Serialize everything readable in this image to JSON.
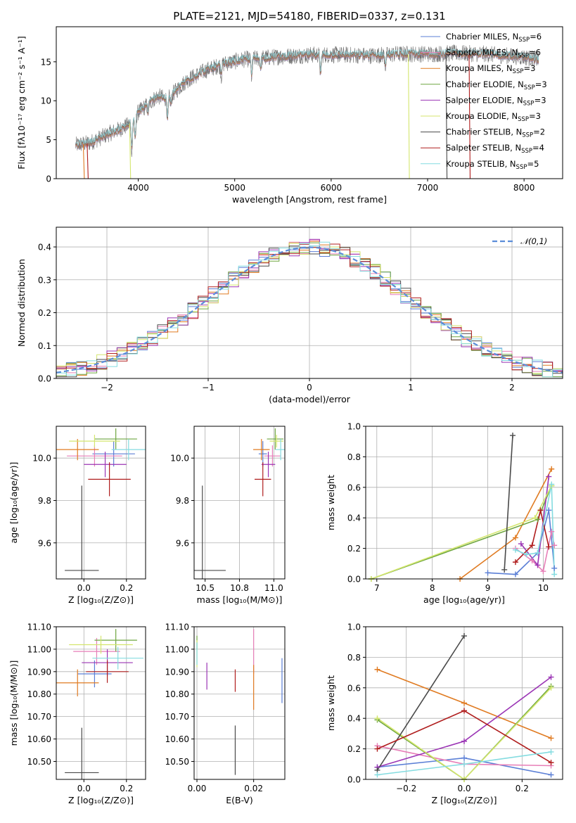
{
  "figure": {
    "title": "PLATE=2121, MJD=54180, FIBERID=0337, z=0.131"
  },
  "colors": {
    "Chabrier MILES": "#5b7fd6",
    "Salpeter MILES": "#e77fb8",
    "Kroupa MILES": "#e07b22",
    "Chabrier ELODIE": "#6ea640",
    "Salpeter ELODIE": "#9b35b5",
    "Kroupa ELODIE": "#d4e66e",
    "Chabrier STELIB": "#4a4a4a",
    "Salpeter STELIB": "#b01e1e",
    "Kroupa STELIB": "#84dce0"
  },
  "chart_data": [
    {
      "id": "spectrum",
      "type": "line",
      "title": "PLATE=2121, MJD=54180, FIBERID=0337, z=0.131",
      "xlabel": "wavelength [Angstrom, rest frame]",
      "ylabel": "Flux [fλ10⁻¹⁷ erg cm⁻² s⁻¹ A⁻¹]",
      "xlim": [
        3150,
        8400
      ],
      "ylim": [
        0,
        19.5
      ],
      "xticks": [
        4000,
        5000,
        6000,
        7000,
        8000
      ],
      "yticks": [
        0,
        5,
        10,
        15
      ],
      "grid": false,
      "legend_position": "top-right",
      "legend": [
        "Chabrier MILES, N_SSP=6",
        "Salpeter MILES, N_SSP=6",
        "Kroupa MILES, N_SSP=3",
        "Chabrier ELODIE, N_SSP=3",
        "Salpeter ELODIE, N_SSP=3",
        "Kroupa ELODIE, N_SSP=3",
        "Chabrier STELIB, N_SSP=2",
        "Salpeter STELIB, N_SSP=4",
        "Kroupa STELIB, N_SSP=5"
      ],
      "continuum": {
        "wavelength": [
          3350,
          3500,
          3700,
          3800,
          3900,
          4000,
          4200,
          4300,
          4500,
          4700,
          4900,
          5100,
          5300,
          5500,
          5800,
          6100,
          6400,
          6700,
          7000,
          7300,
          7600,
          7800,
          8000,
          8150
        ],
        "flux": [
          4.3,
          4.6,
          5.8,
          6.3,
          6.9,
          8.5,
          10.6,
          10.2,
          12.6,
          13.9,
          14.8,
          15.3,
          15.5,
          15.7,
          15.9,
          15.9,
          15.8,
          16.0,
          16.0,
          16.1,
          16.0,
          15.8,
          15.6,
          15.3
        ]
      },
      "absorption_lines": [
        {
          "wavelength": 3934,
          "depth": 4.0
        },
        {
          "wavelength": 3969,
          "depth": 3.0
        },
        {
          "wavelength": 4102,
          "depth": 1.0
        },
        {
          "wavelength": 4304,
          "depth": 2.5
        },
        {
          "wavelength": 4340,
          "depth": 1.2
        },
        {
          "wavelength": 4861,
          "depth": 1.5
        },
        {
          "wavelength": 5175,
          "depth": 2.3
        },
        {
          "wavelength": 5270,
          "depth": 1.0
        },
        {
          "wavelength": 5890,
          "depth": 2.5
        },
        {
          "wavelength": 6563,
          "depth": 1.5
        },
        {
          "wavelength": 8498,
          "depth": 1.0
        }
      ],
      "model_dropouts": [
        {
          "series": "Kroupa MILES",
          "wavelength": 3430
        },
        {
          "series": "Salpeter STELIB",
          "wavelength": 3470
        },
        {
          "series": "Kroupa ELODIE",
          "wavelength": 3910
        },
        {
          "series": "Kroupa ELODIE",
          "wavelength": 6800
        },
        {
          "series": "Chabrier STELIB",
          "wavelength": 7190
        },
        {
          "series": "Salpeter STELIB",
          "wavelength": 7430
        }
      ]
    },
    {
      "id": "residual_histogram",
      "type": "bar",
      "xlabel": "(data-model)/error",
      "ylabel": "Normed distribution",
      "xlim": [
        -2.5,
        2.5
      ],
      "ylim": [
        0,
        0.46
      ],
      "xticks": [
        -2,
        -1,
        0,
        1,
        2
      ],
      "yticks": [
        0.0,
        0.1,
        0.2,
        0.3,
        0.4
      ],
      "grid": true,
      "legend_position": "top-right",
      "legend": [
        "𝒩(0,1)"
      ],
      "bin_width": 0.1,
      "gaussian": {
        "mean": 0,
        "sigma": 1,
        "color": "#5b8dd9"
      }
    },
    {
      "id": "age_vs_Z",
      "type": "scatter",
      "xlabel": "Z [log₁₀(Z/Z⊙)]",
      "ylabel": "age  [log₁₀(age/yr)]",
      "xlim": [
        -0.13,
        0.29
      ],
      "ylim": [
        9.43,
        10.15
      ],
      "xticks": [
        0.0,
        0.2
      ],
      "yticks": [
        9.6,
        9.8,
        10.0
      ],
      "grid": true,
      "points": [
        {
          "series": "Chabrier MILES",
          "x": 0.14,
          "xerr": 0.1,
          "y": 10.02,
          "yerr": 0.06
        },
        {
          "series": "Salpeter MILES",
          "x": 0.05,
          "xerr": 0.13,
          "y": 10.01,
          "yerr": 0.05
        },
        {
          "series": "Kroupa MILES",
          "x": -0.03,
          "xerr": 0.1,
          "y": 10.04,
          "yerr": 0.05
        },
        {
          "series": "Chabrier ELODIE",
          "x": 0.15,
          "xerr": 0.1,
          "y": 10.09,
          "yerr": 0.05
        },
        {
          "series": "Salpeter ELODIE",
          "x": 0.1,
          "xerr": 0.1,
          "y": 9.97,
          "yerr": 0.06
        },
        {
          "series": "Kroupa ELODIE",
          "x": 0.05,
          "xerr": 0.12,
          "y": 10.08,
          "yerr": 0.03
        },
        {
          "series": "Chabrier STELIB",
          "x": -0.01,
          "xerr": 0.08,
          "y": 9.47,
          "yerr": 0.4
        },
        {
          "series": "Salpeter STELIB",
          "x": 0.12,
          "xerr": 0.1,
          "y": 9.9,
          "yerr": 0.08
        },
        {
          "series": "Kroupa STELIB",
          "x": 0.21,
          "xerr": 0.08,
          "y": 10.04,
          "yerr": 0.05
        }
      ]
    },
    {
      "id": "age_vs_mass",
      "type": "scatter",
      "xlabel": "mass [log₁₀(M/M⊙)]",
      "xlim": [
        10.42,
        11.08
      ],
      "ylim": [
        9.43,
        10.15
      ],
      "xticks": [
        10.5,
        10.75,
        11.0
      ],
      "yticks": [
        9.6,
        9.8,
        10.0
      ],
      "grid": true,
      "points": [
        {
          "series": "Chabrier MILES",
          "x": 10.92,
          "xerr": 0.03,
          "y": 10.02,
          "yerr": 0.06
        },
        {
          "series": "Salpeter MILES",
          "x": 10.99,
          "xerr": 0.06,
          "y": 10.01,
          "yerr": 0.05
        },
        {
          "series": "Kroupa MILES",
          "x": 10.91,
          "xerr": 0.06,
          "y": 10.04,
          "yerr": 0.05
        },
        {
          "series": "Chabrier ELODIE",
          "x": 11.01,
          "xerr": 0.06,
          "y": 10.09,
          "yerr": 0.05
        },
        {
          "series": "Salpeter ELODIE",
          "x": 10.96,
          "xerr": 0.05,
          "y": 9.97,
          "yerr": 0.06
        },
        {
          "series": "Kroupa ELODIE",
          "x": 11.02,
          "xerr": 0.05,
          "y": 10.08,
          "yerr": 0.03
        },
        {
          "series": "Chabrier STELIB",
          "x": 10.48,
          "xerr": 0.17,
          "y": 9.47,
          "yerr": 0.4
        },
        {
          "series": "Salpeter STELIB",
          "x": 10.92,
          "xerr": 0.06,
          "y": 9.9,
          "yerr": 0.08
        },
        {
          "series": "Kroupa STELIB",
          "x": 11.05,
          "xerr": 0.04,
          "y": 10.04,
          "yerr": 0.05
        }
      ]
    },
    {
      "id": "mass_weight_vs_age",
      "type": "line",
      "xlabel": "age  [log₁₀(age/yr)]",
      "ylabel": "mass weight",
      "xlim": [
        6.8,
        10.35
      ],
      "ylim": [
        0,
        1.0
      ],
      "xticks": [
        7,
        8,
        9,
        10
      ],
      "yticks": [
        0.0,
        0.2,
        0.4,
        0.6,
        0.8,
        1.0
      ],
      "grid": true,
      "series": [
        {
          "name": "Chabrier MILES",
          "x": [
            9.0,
            9.5,
            9.9,
            10.1,
            10.2
          ],
          "y": [
            0.04,
            0.03,
            0.17,
            0.45,
            0.07
          ]
        },
        {
          "name": "Salpeter MILES",
          "x": [
            9.5,
            9.8,
            10.0,
            10.15,
            10.2
          ],
          "y": [
            0.2,
            0.12,
            0.05,
            0.31,
            0.22
          ]
        },
        {
          "name": "Kroupa MILES",
          "x": [
            8.5,
            9.5,
            10.15
          ],
          "y": [
            0.0,
            0.27,
            0.72
          ]
        },
        {
          "name": "Chabrier ELODIE",
          "x": [
            6.9,
            9.9,
            10.15
          ],
          "y": [
            0.0,
            0.39,
            0.61
          ]
        },
        {
          "name": "Salpeter ELODIE",
          "x": [
            9.6,
            9.9,
            10.1
          ],
          "y": [
            0.23,
            0.09,
            0.67
          ]
        },
        {
          "name": "Kroupa ELODIE",
          "x": [
            6.9,
            9.85,
            10.15
          ],
          "y": [
            0.0,
            0.4,
            0.61
          ]
        },
        {
          "name": "Chabrier STELIB",
          "x": [
            9.3,
            9.45
          ],
          "y": [
            0.06,
            0.94
          ]
        },
        {
          "name": "Salpeter STELIB",
          "x": [
            9.5,
            9.8,
            9.95,
            10.1
          ],
          "y": [
            0.11,
            0.22,
            0.45,
            0.21
          ]
        },
        {
          "name": "Kroupa STELIB",
          "x": [
            9.5,
            9.7,
            9.9,
            10.15,
            10.2
          ],
          "y": [
            0.19,
            0.16,
            0.17,
            0.62,
            0.03
          ]
        }
      ]
    },
    {
      "id": "mass_vs_Z",
      "type": "scatter",
      "xlabel": "Z [log₁₀(Z/Z⊙)]",
      "ylabel": "mass [log₁₀(M/M⊙)]",
      "xlim": [
        -0.13,
        0.29
      ],
      "ylim": [
        10.42,
        11.1
      ],
      "xticks": [
        0.0,
        0.2
      ],
      "yticks": [
        10.5,
        10.6,
        10.7,
        10.8,
        10.9,
        11.0,
        11.1
      ],
      "grid": true,
      "points": [
        {
          "series": "Chabrier MILES",
          "x": 0.05,
          "xerr": 0.08,
          "y": 10.89,
          "yerr": 0.06
        },
        {
          "series": "Salpeter MILES",
          "x": 0.06,
          "xerr": 0.11,
          "y": 10.99,
          "yerr": 0.06
        },
        {
          "series": "Kroupa MILES",
          "x": -0.03,
          "xerr": 0.1,
          "y": 10.85,
          "yerr": 0.06
        },
        {
          "series": "Chabrier ELODIE",
          "x": 0.15,
          "xerr": 0.1,
          "y": 11.04,
          "yerr": 0.05
        },
        {
          "series": "Salpeter ELODIE",
          "x": 0.11,
          "xerr": 0.12,
          "y": 10.94,
          "yerr": 0.06
        },
        {
          "series": "Kroupa ELODIE",
          "x": 0.08,
          "xerr": 0.15,
          "y": 11.02,
          "yerr": 0.04
        },
        {
          "series": "Chabrier STELIB",
          "x": -0.01,
          "xerr": 0.08,
          "y": 10.45,
          "yerr": 0.2
        },
        {
          "series": "Salpeter STELIB",
          "x": 0.11,
          "xerr": 0.1,
          "y": 10.9,
          "yerr": 0.05
        },
        {
          "series": "Kroupa STELIB",
          "x": 0.16,
          "xerr": 0.12,
          "y": 10.96,
          "yerr": 0.05
        }
      ]
    },
    {
      "id": "mass_vs_EBV",
      "type": "scatter",
      "xlabel": "E(B-V)",
      "xlim": [
        -0.001,
        0.031
      ],
      "ylim": [
        10.42,
        11.1
      ],
      "xticks": [
        0.0,
        0.02
      ],
      "yticks": [
        10.5,
        10.6,
        10.7,
        10.8,
        10.9,
        11.0,
        11.1
      ],
      "grid": true,
      "points": [
        {
          "series": "Chabrier MILES",
          "x": 0.03,
          "y": 10.86,
          "yerr": 0.1
        },
        {
          "series": "Salpeter MILES",
          "x": 0.02,
          "y": 10.99,
          "yerr": 0.1
        },
        {
          "series": "Kroupa MILES",
          "x": 0.02,
          "y": 10.83,
          "yerr": 0.1
        },
        {
          "series": "Chabrier ELODIE",
          "x": 0.0,
          "y": 11.03,
          "yerr": 0.03
        },
        {
          "series": "Salpeter ELODIE",
          "x": 0.0035,
          "y": 10.88,
          "yerr": 0.06
        },
        {
          "series": "Kroupa ELODIE",
          "x": 0.0,
          "y": 10.98,
          "yerr": 0.06
        },
        {
          "series": "Chabrier STELIB",
          "x": 0.0135,
          "y": 10.55,
          "yerr": 0.11
        },
        {
          "series": "Salpeter STELIB",
          "x": 0.0135,
          "y": 10.86,
          "yerr": 0.05
        },
        {
          "series": "Kroupa STELIB",
          "x": 0.0,
          "y": 10.98,
          "yerr": 0.05
        }
      ]
    },
    {
      "id": "mass_weight_vs_Z",
      "type": "line",
      "xlabel": "Z [log₁₀(Z/Z⊙)]",
      "ylabel": "mass weight",
      "xlim": [
        -0.34,
        0.34
      ],
      "ylim": [
        0,
        1.0
      ],
      "xticks": [
        -0.2,
        0.0,
        0.2
      ],
      "yticks": [
        0.0,
        0.2,
        0.4,
        0.6,
        0.8,
        1.0
      ],
      "grid": true,
      "series": [
        {
          "name": "Chabrier MILES",
          "x": [
            -0.3,
            0.0,
            0.3
          ],
          "y": [
            0.08,
            0.14,
            0.03
          ]
        },
        {
          "name": "Salpeter MILES",
          "x": [
            -0.3,
            0.0,
            0.3
          ],
          "y": [
            0.22,
            0.1,
            0.09
          ]
        },
        {
          "name": "Kroupa MILES",
          "x": [
            -0.3,
            0.0,
            0.3
          ],
          "y": [
            0.72,
            0.5,
            0.27
          ]
        },
        {
          "name": "Chabrier ELODIE",
          "x": [
            -0.3,
            0.0,
            0.3
          ],
          "y": [
            0.39,
            0.0,
            0.61
          ]
        },
        {
          "name": "Salpeter ELODIE",
          "x": [
            -0.3,
            0.0,
            0.3
          ],
          "y": [
            0.08,
            0.25,
            0.67
          ]
        },
        {
          "name": "Kroupa ELODIE",
          "x": [
            -0.3,
            0.0,
            0.3
          ],
          "y": [
            0.4,
            0.0,
            0.6
          ]
        },
        {
          "name": "Chabrier STELIB",
          "x": [
            -0.3,
            0.0
          ],
          "y": [
            0.06,
            0.94
          ]
        },
        {
          "name": "Salpeter STELIB",
          "x": [
            -0.3,
            0.0,
            0.3
          ],
          "y": [
            0.2,
            0.45,
            0.11
          ]
        },
        {
          "name": "Kroupa STELIB",
          "x": [
            -0.3,
            0.0,
            0.3
          ],
          "y": [
            0.03,
            0.1,
            0.18
          ]
        }
      ]
    }
  ]
}
